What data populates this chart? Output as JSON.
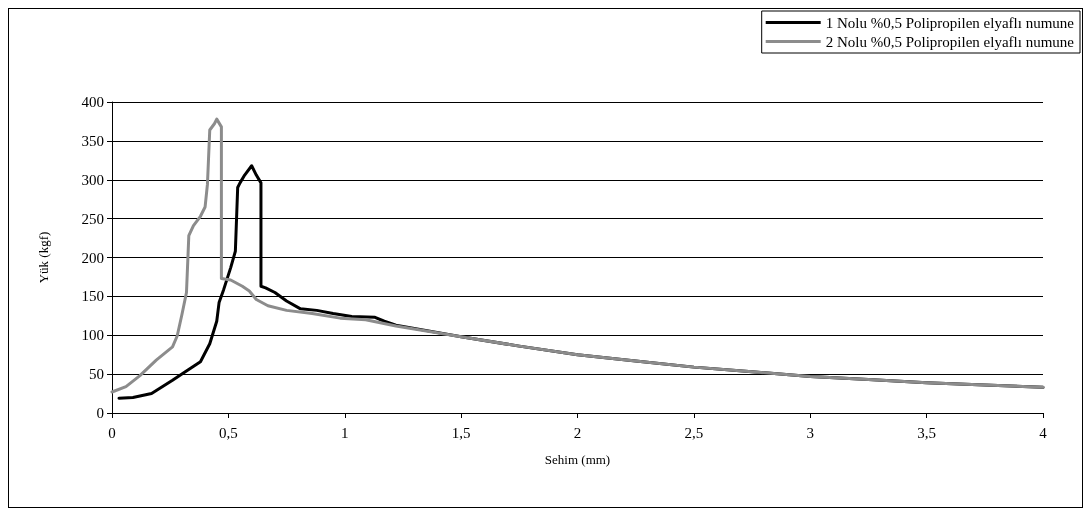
{
  "chart_data": {
    "type": "line",
    "xlabel": "Sehim (mm)",
    "ylabel": "Yük (kgf)",
    "xlim": [
      0,
      4
    ],
    "xticks": [
      0,
      {
        "value": 0.5,
        "label": "0,5"
      },
      1,
      {
        "value": 1.5,
        "label": "1,5"
      },
      2,
      {
        "value": 2.5,
        "label": "2,5"
      },
      3,
      {
        "value": 3.5,
        "label": "3,5"
      },
      4
    ],
    "ylim": [
      0,
      400
    ],
    "yticks": [
      0,
      50,
      100,
      150,
      200,
      250,
      300,
      350,
      400
    ],
    "grid": "y",
    "legend": "top right",
    "marker": "none",
    "line_style": "solid",
    "series": [
      {
        "name": "1 Nolu %0,5 Polipropilen elyaflı numune",
        "color": "#000000",
        "x": [
          0.03,
          0.09,
          0.17,
          0.26,
          0.31,
          0.38,
          0.42,
          0.45,
          0.46,
          0.48,
          0.51,
          0.53,
          0.54,
          0.55,
          0.57,
          0.6,
          0.62,
          0.64,
          0.64,
          0.66,
          0.7,
          0.75,
          0.81,
          0.88,
          0.95,
          1.03,
          1.13,
          1.17,
          1.22,
          1.5,
          1.75,
          2,
          2.25,
          2.5,
          2.75,
          3,
          3.25,
          3.5,
          3.75,
          4
        ],
        "values": [
          19,
          20,
          25,
          42,
          52,
          66,
          89,
          118,
          142,
          159,
          187,
          208,
          290,
          296,
          306,
          318,
          306,
          296,
          163,
          161,
          155,
          144,
          134,
          132,
          128,
          124,
          123,
          118,
          113,
          98,
          86,
          75,
          67,
          59,
          53,
          47,
          43,
          39,
          36,
          33
        ]
      },
      {
        "name": "2 Nolu %0,5 Polipropilen elyaflı numune",
        "color": "#8c8c8c",
        "x": [
          0,
          0.06,
          0.12,
          0.19,
          0.26,
          0.28,
          0.3,
          0.32,
          0.33,
          0.35,
          0.38,
          0.4,
          0.41,
          0.42,
          0.44,
          0.45,
          0.47,
          0.47,
          0.47,
          0.51,
          0.56,
          0.59,
          0.62,
          0.67,
          0.75,
          0.86,
          0.98,
          1.09,
          1.22,
          1.5,
          1.75,
          2,
          2.25,
          2.5,
          2.75,
          3,
          3.25,
          3.5,
          3.75,
          4
        ],
        "values": [
          27,
          34,
          48,
          68,
          85,
          99,
          126,
          155,
          228,
          241,
          253,
          265,
          294,
          364,
          372,
          378,
          368,
          331,
          173,
          171,
          163,
          157,
          146,
          138,
          132,
          128,
          122,
          120,
          112,
          98,
          86,
          75,
          67,
          59,
          53,
          47,
          43,
          39,
          36,
          33
        ]
      }
    ]
  }
}
